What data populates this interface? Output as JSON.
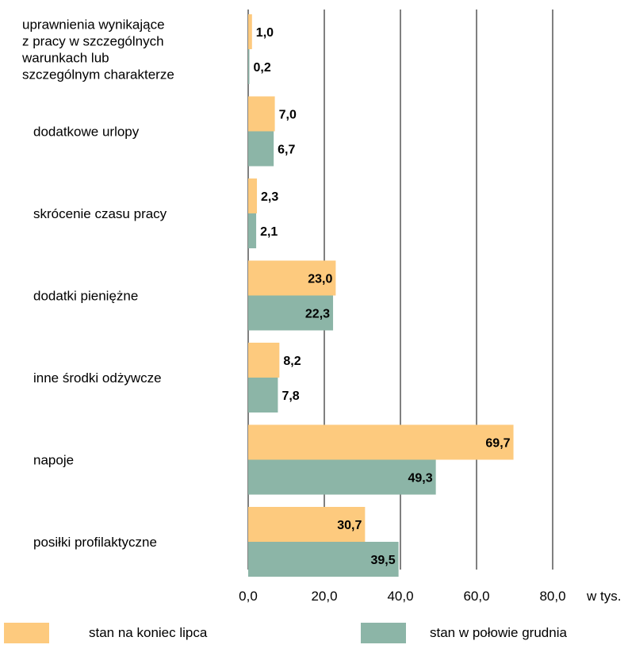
{
  "chart_data": {
    "type": "bar",
    "orientation": "horizontal",
    "categories": [
      [
        "uprawnienia wynikające",
        "z pracy w szczególnych",
        "warunkach lub",
        "szczególnym charakterze"
      ],
      [
        "dodatkowe urlopy"
      ],
      [
        "skrócenie czasu pracy"
      ],
      [
        "dodatki pieniężne"
      ],
      [
        "inne środki odżywcze"
      ],
      [
        "napoje"
      ],
      [
        "posiłki profilaktyczne"
      ]
    ],
    "series": [
      {
        "name": "stan na koniec lipca",
        "color": "#fdca7e",
        "values": [
          1.0,
          7.0,
          2.3,
          23.0,
          8.2,
          69.7,
          30.7
        ],
        "labels": [
          "1,0",
          "7,0",
          "2,3",
          "23,0",
          "8,2",
          "69,7",
          "30,7"
        ]
      },
      {
        "name": "stan w połowie grudnia",
        "color": "#8cb5a7",
        "values": [
          0.2,
          6.7,
          2.1,
          22.3,
          7.8,
          49.3,
          39.5
        ],
        "labels": [
          "0,2",
          "6,7",
          "2,1",
          "22,3",
          "7,8",
          "49,3",
          "39,5"
        ]
      }
    ],
    "xlim": [
      0,
      80
    ],
    "xticks": [
      0,
      20,
      40,
      60,
      80
    ],
    "xtick_labels": [
      "0,0",
      "20,0",
      "40,0",
      "60,0",
      "80,0"
    ],
    "xlabel": "w tys.",
    "grid": "vertical",
    "legend_position": "bottom"
  }
}
